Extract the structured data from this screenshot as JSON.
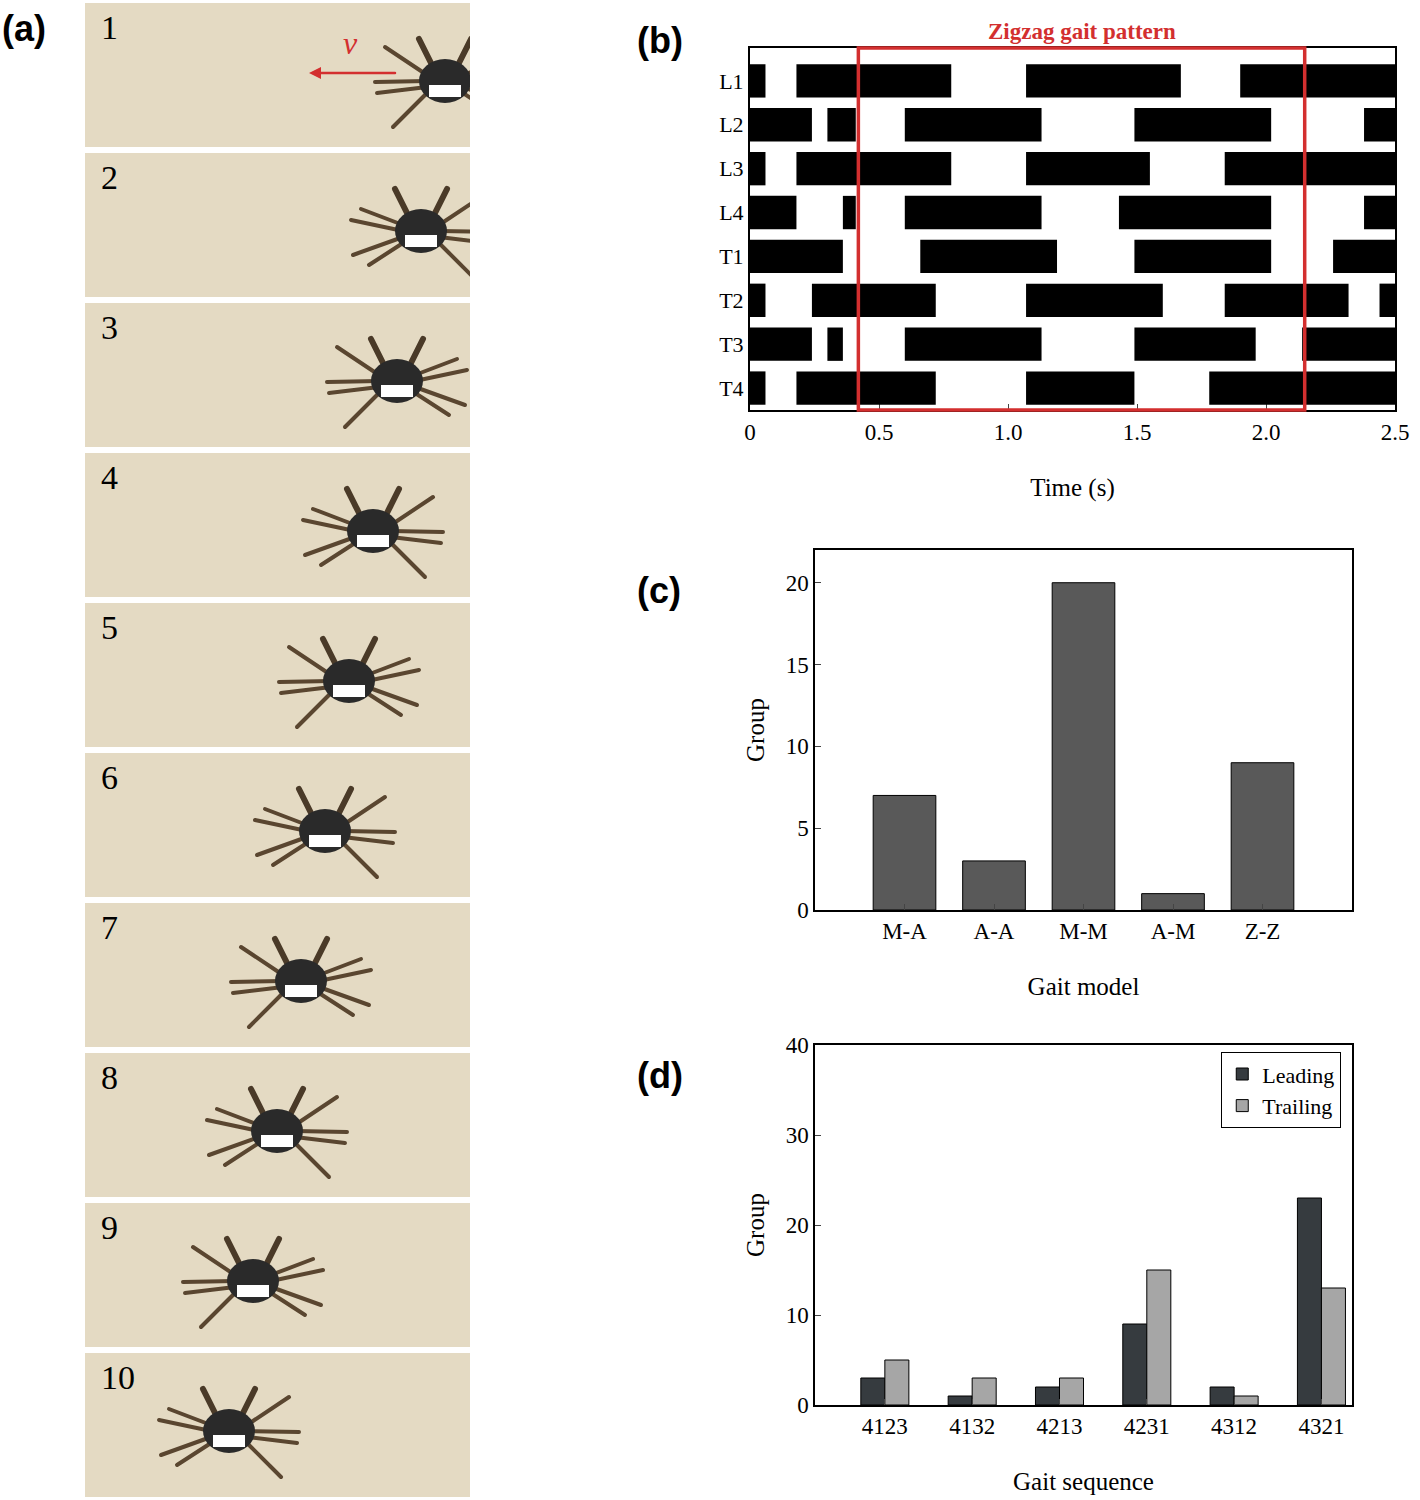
{
  "panel_a": {
    "label": "(a)",
    "velocity_label": "v",
    "frames": [
      "1",
      "2",
      "3",
      "4",
      "5",
      "6",
      "7",
      "8",
      "9",
      "10"
    ]
  },
  "chart_data": [
    {
      "type": "timeline",
      "annotations": [
        {
          "text": "(b)",
          "kind": "panel"
        },
        {
          "text": "Zigzag gait pattern",
          "kind": "box",
          "x0": 0.42,
          "x1": 2.15,
          "color": "#d32f2f"
        }
      ],
      "x_label": "Time (s)",
      "categories": [
        "L1",
        "L2",
        "L3",
        "L4",
        "T1",
        "T2",
        "T3",
        "T4"
      ],
      "intervals": [
        [
          [
            0,
            0.06
          ],
          [
            0.18,
            0.78
          ],
          [
            1.07,
            1.67
          ],
          [
            1.9,
            2.5
          ]
        ],
        [
          [
            0,
            0.24
          ],
          [
            0.3,
            0.41
          ],
          [
            0.6,
            1.13
          ],
          [
            1.49,
            2.02
          ],
          [
            2.38,
            2.5
          ]
        ],
        [
          [
            0,
            0.06
          ],
          [
            0.18,
            0.78
          ],
          [
            1.07,
            1.55
          ],
          [
            1.84,
            2.5
          ]
        ],
        [
          [
            0,
            0.18
          ],
          [
            0.36,
            0.41
          ],
          [
            0.6,
            1.13
          ],
          [
            1.43,
            2.02
          ],
          [
            2.38,
            2.5
          ]
        ],
        [
          [
            0,
            0.36
          ],
          [
            0.66,
            1.19
          ],
          [
            1.49,
            2.02
          ],
          [
            2.26,
            2.5
          ]
        ],
        [
          [
            0,
            0.06
          ],
          [
            0.24,
            0.72
          ],
          [
            1.07,
            1.6
          ],
          [
            1.84,
            2.32
          ],
          [
            2.44,
            2.5
          ]
        ],
        [
          [
            0,
            0.24
          ],
          [
            0.3,
            0.36
          ],
          [
            0.6,
            1.13
          ],
          [
            1.49,
            1.96
          ],
          [
            2.14,
            2.5
          ]
        ],
        [
          [
            0,
            0.06
          ],
          [
            0.18,
            0.72
          ],
          [
            1.07,
            1.49
          ],
          [
            1.78,
            2.5
          ]
        ]
      ],
      "color": "#000000",
      "xlim": [
        0,
        2.5
      ],
      "xticks": [
        0,
        0.5,
        {
          "value": 1,
          "label": "1.0"
        },
        1.5,
        {
          "value": 2,
          "label": "2.0"
        },
        2.5
      ],
      "grid": false
    },
    {
      "type": "bar",
      "annotations": [
        {
          "text": "(c)",
          "kind": "panel"
        }
      ],
      "x_label": "Gait model",
      "y_label": "Group",
      "categories": [
        "M-A",
        "A-A",
        "M-M",
        "A-M",
        "Z-Z"
      ],
      "values": [
        7,
        3,
        20,
        1,
        9
      ],
      "color": "#595959",
      "ylim": [
        0,
        22
      ],
      "yticks": [
        0,
        5,
        10,
        15,
        20
      ],
      "grid": false
    },
    {
      "type": "bar",
      "annotations": [
        {
          "text": "(d)",
          "kind": "panel"
        }
      ],
      "x_label": "Gait sequence",
      "y_label": "Group",
      "categories": [
        "4123",
        "4132",
        "4213",
        "4231",
        "4312",
        "4321"
      ],
      "series": [
        {
          "name": "Leading",
          "color": "#363b3f",
          "values": [
            3,
            1,
            2,
            9,
            2,
            23
          ]
        },
        {
          "name": "Trailing",
          "color": "#a6a6a6",
          "values": [
            5,
            3,
            3,
            15,
            1,
            13
          ]
        }
      ],
      "ylim": [
        0,
        40
      ],
      "yticks": [
        0,
        10,
        20,
        30,
        40
      ],
      "legend": "upper right",
      "grid": false
    }
  ]
}
